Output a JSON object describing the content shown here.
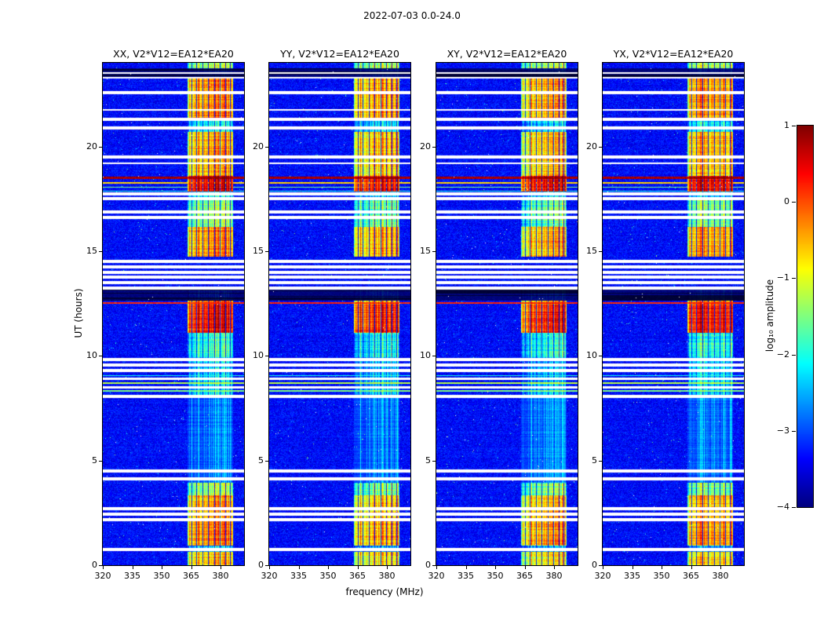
{
  "figure_title": "2022-07-03 0.0-24.0",
  "chart_data": {
    "type": "heatmap",
    "subtype": "dynamic_spectrum_grid",
    "panels": [
      {
        "label": "XX",
        "title": "XX, V2*V12=EA12*EA20"
      },
      {
        "label": "YY",
        "title": "YY, V2*V12=EA12*EA20"
      },
      {
        "label": "XY",
        "title": "XY, V2*V12=EA12*EA20"
      },
      {
        "label": "YX",
        "title": "YX, V2*V12=EA12*EA20"
      }
    ],
    "xlabel": "frequency (MHz)",
    "ylabel": "UT (hours)",
    "x_ticks": [
      320,
      335,
      350,
      365,
      380
    ],
    "y_ticks": [
      0,
      5,
      10,
      15,
      20
    ],
    "xlim": [
      320,
      392
    ],
    "ylim": [
      0,
      24
    ],
    "colorbar": {
      "label": "log₁₀ amplitude",
      "ticks": [
        1,
        0,
        -1,
        -2,
        -3,
        -4
      ],
      "vmin": -4,
      "vmax": 1,
      "colormap": "jet"
    },
    "background_level": -3.35,
    "rfi_band": {
      "f_lo_frac": 0.598,
      "f_hi_frac": 0.915,
      "f_lo_mhz": 363,
      "f_hi_mhz": 386,
      "separator_fracs": [
        0.625,
        0.662,
        0.703,
        0.744,
        0.787,
        0.828,
        0.868,
        0.9
      ]
    },
    "time_segments": [
      {
        "t0": 0.0,
        "t1": 0.65,
        "level": -0.9
      },
      {
        "t0": 0.65,
        "t1": 0.95,
        "level": -2.6
      },
      {
        "t0": 0.95,
        "t1": 2.3,
        "level": -0.55
      },
      {
        "t0": 2.3,
        "t1": 3.35,
        "level": -0.7
      },
      {
        "t0": 3.35,
        "t1": 3.95,
        "level": -1.6
      },
      {
        "t0": 3.95,
        "t1": 8.05,
        "level": -2.7,
        "style": "faint"
      },
      {
        "t0": 8.05,
        "t1": 9.95,
        "level": -2.5
      },
      {
        "t0": 9.95,
        "t1": 11.1,
        "level": -2.1
      },
      {
        "t0": 11.1,
        "t1": 12.45,
        "level": 0.1
      },
      {
        "t0": 12.45,
        "t1": 12.62,
        "level": -0.4
      },
      {
        "t0": 12.62,
        "t1": 13.15,
        "level": -3.6,
        "style": "dark"
      },
      {
        "t0": 13.15,
        "t1": 14.75,
        "level": -3.6
      },
      {
        "t0": 14.75,
        "t1": 16.15,
        "level": -0.6
      },
      {
        "t0": 16.15,
        "t1": 17.45,
        "level": -1.7
      },
      {
        "t0": 17.45,
        "t1": 17.85,
        "level": -2.4
      },
      {
        "t0": 17.85,
        "t1": 18.6,
        "level": 0.25
      },
      {
        "t0": 18.6,
        "t1": 19.45,
        "level": -0.8
      },
      {
        "t0": 19.45,
        "t1": 20.7,
        "level": -0.7
      },
      {
        "t0": 20.7,
        "t1": 21.35,
        "level": -2.3
      },
      {
        "t0": 21.35,
        "t1": 23.25,
        "level": -0.55
      },
      {
        "t0": 23.25,
        "t1": 23.74,
        "level": -3.6,
        "style": "dark"
      },
      {
        "t0": 23.74,
        "t1": 24.0,
        "level": -1.4
      }
    ],
    "white_gaps": [
      [
        0.75,
        0.13
      ],
      [
        2.18,
        0.13
      ],
      [
        2.44,
        0.13
      ],
      [
        2.7,
        0.13
      ],
      [
        4.13,
        0.13
      ],
      [
        4.5,
        0.13
      ],
      [
        8.06,
        0.13
      ],
      [
        8.51,
        0.11
      ],
      [
        8.89,
        0.11
      ],
      [
        9.3,
        0.13
      ],
      [
        9.56,
        0.13
      ],
      [
        9.83,
        0.13
      ],
      [
        13.24,
        0.14
      ],
      [
        13.5,
        0.14
      ],
      [
        13.76,
        0.14
      ],
      [
        13.99,
        0.14
      ],
      [
        14.25,
        0.14
      ],
      [
        14.51,
        0.14
      ],
      [
        16.61,
        0.13
      ],
      [
        16.88,
        0.13
      ],
      [
        17.51,
        0.12
      ],
      [
        17.74,
        0.12
      ],
      [
        19.2,
        0.11
      ],
      [
        19.5,
        0.13
      ],
      [
        20.89,
        0.13
      ],
      [
        21.3,
        0.13
      ],
      [
        21.75,
        0.11
      ],
      [
        22.58,
        0.13
      ],
      [
        23.29,
        0.1
      ],
      [
        23.51,
        0.1
      ]
    ],
    "bright_lines": [
      [
        8.33,
        -1.5,
        2
      ],
      [
        8.7,
        -1.2,
        2
      ],
      [
        9.04,
        -2.0,
        1
      ],
      [
        12.53,
        0.2,
        2
      ],
      [
        17.85,
        -2.0,
        1
      ],
      [
        18.05,
        -1.6,
        1
      ],
      [
        18.26,
        -0.65,
        2
      ],
      [
        18.49,
        0.8,
        3
      ]
    ],
    "panel_level_offsets": [
      0.1,
      -0.05,
      -0.12,
      0.02
    ],
    "seed": 20220703
  }
}
